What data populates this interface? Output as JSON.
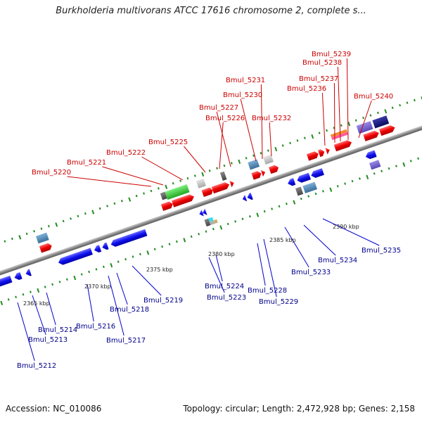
{
  "title": "Burkholderia multivorans ATCC 17616 chromosome 2, complete s...",
  "footer": {
    "accession": "Accession: NC_010086",
    "stats": "Topology: circular; Length: 2,472,928 bp; Genes: 2,158"
  },
  "scale_labels": [
    "2365 kbp",
    "2370 kbp",
    "2375 kbp",
    "2380 kbp",
    "2385 kbp",
    "2390 kbp"
  ],
  "genes_top": [
    "Bmul_5220",
    "Bmul_5221",
    "Bmul_5222",
    "Bmul_5225",
    "Bmul_5226",
    "Bmul_5227",
    "Bmul_5230",
    "Bmul_5231",
    "Bmul_5232",
    "Bmul_5236",
    "Bmul_5237",
    "Bmul_5238",
    "Bmul_5239",
    "Bmul_5240"
  ],
  "genes_bottom": [
    "Bmul_5212",
    "Bmul_5213",
    "Bmul_5214",
    "Bmul_5216",
    "Bmul_5217",
    "Bmul_5218",
    "Bmul_5219",
    "Bmul_5223",
    "Bmul_5224",
    "Bmul_5228",
    "Bmul_5229",
    "Bmul_5233",
    "Bmul_5234",
    "Bmul_5235"
  ],
  "colors": {
    "forward": "#ee0000",
    "reverse": "#1010ee",
    "backbone": "#888888",
    "tick": "#228B22",
    "label_top": "#cc0000",
    "label_bottom": "#00008b"
  }
}
